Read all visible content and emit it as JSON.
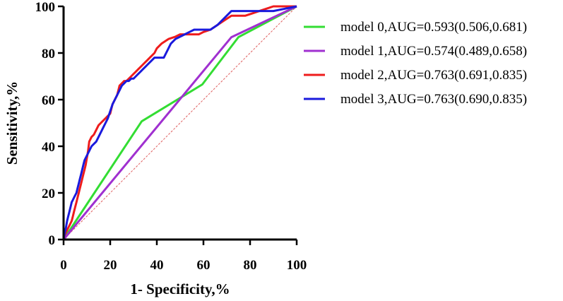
{
  "chart_data": {
    "type": "line",
    "title": "",
    "xlabel": "1- Specificity,%",
    "ylabel": "Sensitivity,%",
    "xlim": [
      0,
      100
    ],
    "ylim": [
      0,
      100
    ],
    "x_ticks": [
      "0",
      "20",
      "40",
      "60",
      "80",
      "100"
    ],
    "y_ticks": [
      "0",
      "20",
      "40",
      "60",
      "80",
      "100"
    ],
    "grid": false,
    "legend_position": "right",
    "reference_line": {
      "name": "chance-line",
      "color": "#e06060",
      "x": [
        0,
        100
      ],
      "y": [
        0,
        100
      ]
    },
    "series": [
      {
        "name": "model 0,AUG=0.593(0.506,0.681)",
        "color": "#33dd33",
        "x": [
          0,
          33.5,
          59.5,
          75,
          100
        ],
        "y": [
          0,
          50.7,
          66.5,
          86.8,
          100
        ]
      },
      {
        "name": "model 1,AUG=0.574(0.489,0.658)",
        "color": "#a030d0",
        "x": [
          0,
          72,
          100
        ],
        "y": [
          0,
          86.8,
          100
        ]
      },
      {
        "name": "model 2,AUG=0.763(0.691,0.835)",
        "color": "#ee1c1c",
        "x": [
          0,
          0.5,
          1,
          1.5,
          2,
          2.5,
          3,
          3.5,
          4,
          4.5,
          5,
          5.5,
          6,
          6.5,
          7,
          7.5,
          8,
          8.5,
          9,
          9.5,
          10,
          10.5,
          11,
          12,
          13,
          14,
          15,
          16,
          17,
          18,
          19,
          20,
          20.5,
          21,
          22,
          23,
          23.5,
          24,
          25,
          26,
          27,
          28,
          29,
          30,
          31,
          32,
          33,
          34,
          35,
          36,
          37,
          38,
          39,
          40,
          42,
          45,
          48,
          50,
          53,
          56,
          58,
          60,
          63,
          66,
          69,
          72,
          75,
          78,
          81,
          84,
          87,
          90,
          93,
          96,
          100
        ],
        "y": [
          0,
          2,
          3,
          4,
          5,
          6,
          7,
          8,
          10,
          12,
          14,
          16,
          18,
          20,
          22,
          24,
          26,
          28,
          30,
          32,
          35,
          38,
          42,
          44,
          45,
          47,
          49,
          50,
          51,
          52,
          53,
          54,
          56,
          58,
          60,
          62,
          64,
          66,
          67,
          68,
          68,
          69,
          70,
          71,
          72,
          73,
          74,
          75,
          76,
          77,
          78,
          79,
          80,
          82,
          84,
          86,
          87,
          88,
          88,
          88,
          88,
          89,
          90,
          92,
          94,
          96,
          96,
          96,
          97,
          98,
          99,
          100,
          100,
          100,
          100
        ]
      },
      {
        "name": "model 3,AUG=0.763(0.690,0.835)",
        "color": "#1a1add",
        "x": [
          0,
          0.5,
          1,
          1.5,
          2,
          2.5,
          3,
          3.5,
          4,
          4.5,
          5,
          5.5,
          6,
          6.5,
          7,
          7.5,
          8,
          8.5,
          9,
          9.5,
          10,
          11,
          12,
          13,
          14,
          15,
          16,
          17,
          18,
          19,
          20,
          21,
          22,
          23,
          24,
          25,
          26,
          27,
          28,
          29,
          30,
          31,
          32,
          33,
          34,
          35,
          36,
          37,
          38,
          39,
          40,
          41,
          42,
          43,
          44,
          45,
          46,
          48,
          50,
          52,
          54,
          56,
          58,
          60,
          63,
          66,
          70,
          72,
          75,
          80,
          85,
          90,
          95,
          100
        ],
        "y": [
          0,
          3,
          5,
          8,
          10,
          12,
          14,
          16,
          17,
          18,
          19,
          20,
          22,
          24,
          26,
          28,
          30,
          32,
          34,
          35,
          36,
          38,
          40,
          41,
          42,
          44,
          46,
          48,
          50,
          52,
          55,
          58,
          60,
          62,
          64,
          66,
          67,
          68,
          68,
          69,
          69,
          70,
          71,
          72,
          73,
          74,
          75,
          76,
          77,
          78,
          78,
          78,
          78,
          78,
          80,
          82,
          84,
          86,
          87,
          88,
          89,
          90,
          90,
          90,
          90,
          92,
          96,
          98,
          98,
          98,
          98,
          98,
          99,
          100
        ]
      }
    ]
  }
}
